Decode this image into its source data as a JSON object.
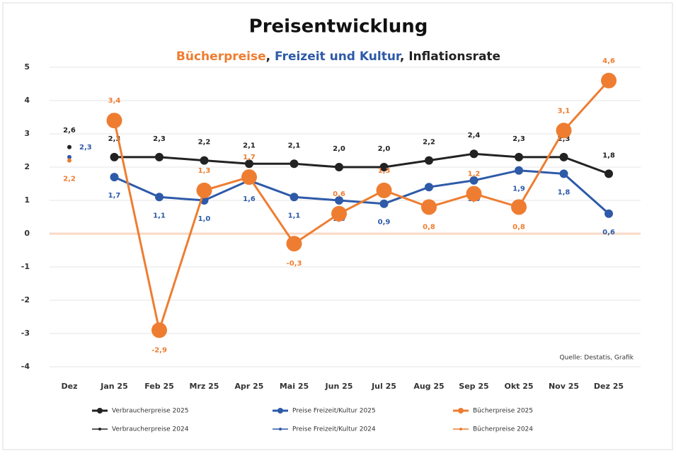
{
  "chart_data": {
    "type": "line",
    "title": "Preisentwicklung",
    "subtitle_parts": [
      {
        "text": "Bücherpreise",
        "color": "#ee7d31"
      },
      {
        "text": ", ",
        "color": "#222222"
      },
      {
        "text": "Freizeit und Kultur",
        "color": "#2e5aa8"
      },
      {
        "text": ", ",
        "color": "#222222"
      },
      {
        "text": "Inflationsrate",
        "color": "#222222"
      }
    ],
    "categories": [
      "Dez",
      "Jan 25",
      "Feb 25",
      "Mrz 25",
      "Apr 25",
      "Mai 25",
      "Jun 25",
      "Jul 25",
      "Aug 25",
      "Sep 25",
      "Okt 25",
      "Nov 25",
      "Dez 25"
    ],
    "ylim": [
      -4,
      5
    ],
    "yticks": [
      -4,
      -3,
      -2,
      -1,
      0,
      1,
      2,
      3,
      4,
      5
    ],
    "grid": true,
    "zero_line_color": "#f8d9c4",
    "source": "Quelle: Destatis, Grafik",
    "series": [
      {
        "name": "Verbraucherpreise 2025",
        "color": "#222222",
        "markers": true,
        "values": [
          null,
          2.3,
          2.3,
          2.2,
          2.1,
          2.1,
          2.0,
          2.0,
          2.2,
          2.4,
          2.3,
          2.3,
          1.8
        ],
        "value_labels": [
          null,
          "2,3",
          "2,3",
          "2,2",
          "2,1",
          "2,1",
          "2,0",
          "2,0",
          "2,2",
          "2,4",
          "2,3",
          "2,3",
          "1,8"
        ]
      },
      {
        "name": "Preise Freizeit/Kultur 2025",
        "color": "#2e5aa8",
        "markers": true,
        "values": [
          null,
          1.7,
          1.1,
          1.0,
          1.6,
          1.1,
          1.0,
          0.9,
          1.4,
          1.6,
          1.9,
          1.8,
          0.6
        ],
        "value_labels": [
          null,
          "1,7",
          "1,1",
          "1,0",
          "1,6",
          "1,1",
          "1,0",
          "0,9",
          "1,4",
          "1,6",
          "1,9",
          "1,8",
          "0,6"
        ]
      },
      {
        "name": "Bücherpreise 2025",
        "color": "#ee7d31",
        "markers": true,
        "values": [
          null,
          3.4,
          -2.9,
          1.3,
          1.7,
          -0.3,
          0.6,
          1.3,
          0.8,
          1.2,
          0.8,
          3.1,
          4.6
        ],
        "value_labels": [
          null,
          "3,4",
          "-2,9",
          "1,3",
          "1,7",
          "-0,3",
          "0,6",
          "1,3",
          "0,8",
          "1,2",
          "0,8",
          "3,1",
          "4,6"
        ]
      },
      {
        "name": "Verbraucherpreise 2024",
        "color": "#222222",
        "markers": false,
        "values": [
          2.6,
          null,
          null,
          null,
          null,
          null,
          null,
          null,
          null,
          null,
          null,
          null,
          null
        ],
        "value_labels": [
          "2,6",
          null,
          null,
          null,
          null,
          null,
          null,
          null,
          null,
          null,
          null,
          null,
          null
        ]
      },
      {
        "name": "Preise Freizeit/Kultur 2024",
        "color": "#2e5aa8",
        "markers": false,
        "values": [
          2.3,
          null,
          null,
          null,
          null,
          null,
          null,
          null,
          null,
          null,
          null,
          null,
          null
        ],
        "value_labels": [
          "2,3",
          null,
          null,
          null,
          null,
          null,
          null,
          null,
          null,
          null,
          null,
          null,
          null
        ]
      },
      {
        "name": "Bücherpreise 2024",
        "color": "#ee7d31",
        "markers": false,
        "values": [
          2.2,
          null,
          null,
          null,
          null,
          null,
          null,
          null,
          null,
          null,
          null,
          null,
          null
        ],
        "value_labels": [
          "2,2",
          null,
          null,
          null,
          null,
          null,
          null,
          null,
          null,
          null,
          null,
          null,
          null
        ]
      }
    ]
  }
}
